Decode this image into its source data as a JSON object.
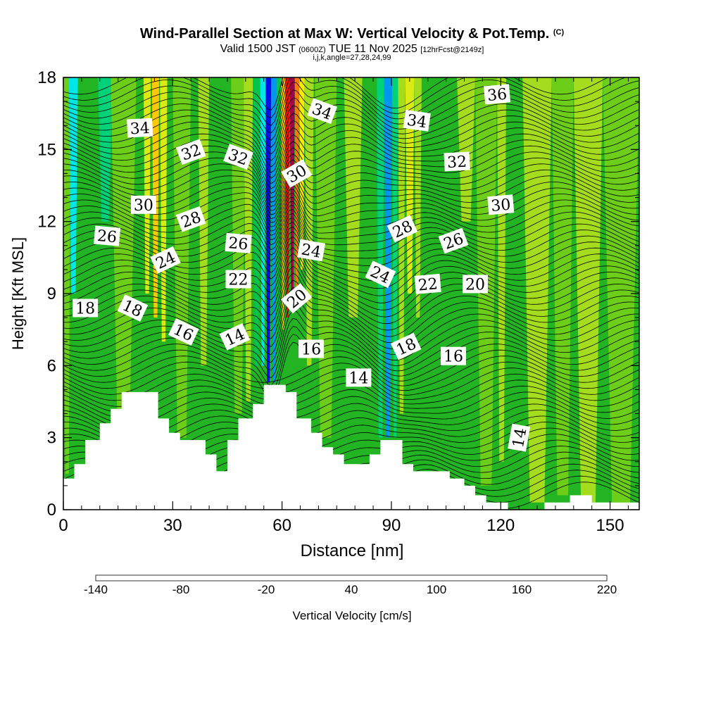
{
  "header": {
    "title": "Wind-Parallel Section at Max W: Vertical Velocity & Pot.Temp.",
    "copyright": "(C)",
    "valid_prefix": "Valid 1500 JST",
    "valid_utc": "(0600Z)",
    "valid_date": "TUE 11 Nov 2025",
    "forecast": "[12hrFcst@2149z]",
    "indices": "i,j,k,angle=27,28,24,99"
  },
  "chart_data": {
    "type": "heatmap",
    "xlabel": "Distance [nm]",
    "ylabel": "Height [Kft MSL]",
    "xlim": [
      0,
      158
    ],
    "ylim": [
      0,
      18
    ],
    "x_ticks": [
      0,
      30,
      60,
      90,
      120,
      150
    ],
    "y_ticks": [
      0,
      3,
      6,
      9,
      12,
      15,
      18
    ],
    "x_tick_labels": [
      "0",
      "30",
      "60",
      "90",
      "120",
      "150"
    ],
    "y_tick_labels": [
      "0",
      "3",
      "6",
      "9",
      "12",
      "15",
      "18"
    ],
    "colorbar": {
      "label": "Vertical Velocity [cm/s]",
      "min": -140,
      "max": 220,
      "step": 20,
      "tick_labels": [
        "-140",
        "-80",
        "-20",
        "40",
        "100",
        "160",
        "220"
      ],
      "colors": [
        "#0010e6",
        "#0050f0",
        "#0098ee",
        "#00e6e6",
        "#00d27a",
        "#00c44e",
        "#22b422",
        "#6cce18",
        "#a6dc1e",
        "#dcea14",
        "#ffea00",
        "#ffc800",
        "#ffa000",
        "#ff7800",
        "#ff4800",
        "#ee1000",
        "#c80018",
        "#a0004a",
        "#7a0068",
        "#5a0080"
      ]
    },
    "terrain": [
      [
        0,
        1.3
      ],
      [
        3,
        1.3
      ],
      [
        3,
        1.9
      ],
      [
        6,
        1.9
      ],
      [
        6,
        2.9
      ],
      [
        10,
        2.9
      ],
      [
        10,
        3.6
      ],
      [
        13,
        3.6
      ],
      [
        13,
        4.2
      ],
      [
        16,
        4.2
      ],
      [
        16,
        4.9
      ],
      [
        26,
        4.9
      ],
      [
        26,
        3.8
      ],
      [
        29,
        3.8
      ],
      [
        29,
        3.2
      ],
      [
        32,
        3.2
      ],
      [
        32,
        2.9
      ],
      [
        39,
        2.9
      ],
      [
        39,
        2.3
      ],
      [
        42,
        2.3
      ],
      [
        42,
        1.6
      ],
      [
        45,
        1.6
      ],
      [
        45,
        2.9
      ],
      [
        48,
        2.9
      ],
      [
        48,
        3.8
      ],
      [
        52,
        3.8
      ],
      [
        52,
        4.4
      ],
      [
        55,
        4.4
      ],
      [
        55,
        5.2
      ],
      [
        61,
        5.2
      ],
      [
        61,
        4.9
      ],
      [
        64,
        4.9
      ],
      [
        64,
        3.8
      ],
      [
        68,
        3.8
      ],
      [
        68,
        3.2
      ],
      [
        71,
        3.2
      ],
      [
        71,
        2.6
      ],
      [
        74,
        2.6
      ],
      [
        74,
        2.3
      ],
      [
        77,
        2.3
      ],
      [
        77,
        1.9
      ],
      [
        84,
        1.9
      ],
      [
        84,
        2.3
      ],
      [
        87,
        2.3
      ],
      [
        87,
        2.9
      ],
      [
        93,
        2.9
      ],
      [
        93,
        1.9
      ],
      [
        96,
        1.9
      ],
      [
        96,
        1.6
      ],
      [
        106,
        1.6
      ],
      [
        106,
        1.3
      ],
      [
        110,
        1.3
      ],
      [
        110,
        1.0
      ],
      [
        113,
        1.0
      ],
      [
        113,
        0.6
      ],
      [
        116,
        0.6
      ],
      [
        116,
        0.3
      ],
      [
        122,
        0.3
      ],
      [
        122,
        0.0
      ],
      [
        132,
        0.0
      ],
      [
        132,
        0.3
      ],
      [
        139,
        0.3
      ],
      [
        139,
        0.6
      ],
      [
        145,
        0.6
      ],
      [
        145,
        0.3
      ],
      [
        158,
        0.3
      ]
    ],
    "velocity_bands": [
      {
        "x": 0,
        "w": 2,
        "value": 0,
        "ymin": 1.5
      },
      {
        "x": 1.5,
        "w": 2.5,
        "value": -70,
        "ymin": 9
      },
      {
        "x": 9.5,
        "w": 4,
        "value": -60,
        "ymin": 12
      },
      {
        "x": 13,
        "w": 7,
        "value": 10,
        "ymin": 4
      },
      {
        "x": 22,
        "w": 2,
        "value": 40,
        "ymin": 9
      },
      {
        "x": 24.3,
        "w": 2,
        "value": 80,
        "ymin": 8
      },
      {
        "x": 26.5,
        "w": 2,
        "value": 40,
        "ymin": 7
      },
      {
        "x": 30,
        "w": 5,
        "value": 10,
        "ymin": 3
      },
      {
        "x": 37,
        "w": 3,
        "value": 30,
        "ymin": 6
      },
      {
        "x": 40,
        "w": 6,
        "value": -10,
        "ymin": 3
      },
      {
        "x": 46,
        "w": 4,
        "value": 0,
        "ymin": 4
      },
      {
        "x": 49.5,
        "w": 2.5,
        "value": 30,
        "ymin": 4.5
      },
      {
        "x": 52,
        "w": 2,
        "value": -40,
        "ymin": 6
      },
      {
        "x": 54,
        "w": 1.5,
        "value": -80,
        "ymin": 6
      },
      {
        "x": 55.5,
        "w": 1.5,
        "value": -130,
        "ymin": 5.3
      },
      {
        "x": 57,
        "w": 1.5,
        "value": -100,
        "ymin": 5.3
      },
      {
        "x": 58.5,
        "w": 1.2,
        "value": -40,
        "ymin": 5.3
      },
      {
        "x": 59.7,
        "w": 1.2,
        "value": 90,
        "ymin": 7.5
      },
      {
        "x": 60.9,
        "w": 1.2,
        "value": 160,
        "ymin": 8
      },
      {
        "x": 62.1,
        "w": 1.4,
        "value": 200,
        "ymin": 9
      },
      {
        "x": 63.5,
        "w": 1.2,
        "value": 120,
        "ymin": 9
      },
      {
        "x": 64.7,
        "w": 1.5,
        "value": 60,
        "ymin": 10
      },
      {
        "x": 66.2,
        "w": 2.5,
        "value": 20,
        "ymin": 6
      },
      {
        "x": 69,
        "w": 6,
        "value": 0,
        "ymin": 3
      },
      {
        "x": 77,
        "w": 5,
        "value": 20,
        "ymin": 8
      },
      {
        "x": 82,
        "w": 4,
        "value": -20,
        "ymin": 2
      },
      {
        "x": 86,
        "w": 2,
        "value": -60,
        "ymin": 3
      },
      {
        "x": 88,
        "w": 2.2,
        "value": -90,
        "ymin": 3
      },
      {
        "x": 90.2,
        "w": 1.6,
        "value": -60,
        "ymin": 3
      },
      {
        "x": 91.8,
        "w": 2,
        "value": 20,
        "ymin": 4
      },
      {
        "x": 93.8,
        "w": 2.5,
        "value": 50,
        "ymin": 9
      },
      {
        "x": 96.3,
        "w": 2,
        "value": 30,
        "ymin": 8
      },
      {
        "x": 100,
        "w": 6,
        "value": -10,
        "ymin": 3
      },
      {
        "x": 108,
        "w": 5,
        "value": 30,
        "ymin": 12
      },
      {
        "x": 113,
        "w": 6,
        "value": 10,
        "ymin": 1
      },
      {
        "x": 119,
        "w": 2.5,
        "value": 20,
        "ymin": 2
      },
      {
        "x": 126,
        "w": 6,
        "value": 30,
        "ymin": 10
      },
      {
        "x": 126,
        "w": 8,
        "value": 20,
        "ymin": 0.3
      },
      {
        "x": 134,
        "w": 6,
        "value": 0,
        "ymin": 0.6
      },
      {
        "x": 140,
        "w": 8,
        "value": 20,
        "ymin": 0.3
      },
      {
        "x": 148,
        "w": 10,
        "value": 10,
        "ymin": 0.3
      }
    ],
    "theta_labels": [
      {
        "text": "36",
        "x": 119,
        "y": 17.3,
        "angle": -5
      },
      {
        "text": "34",
        "x": 21,
        "y": 15.9,
        "angle": -3
      },
      {
        "text": "34",
        "x": 71,
        "y": 16.6,
        "angle": 20
      },
      {
        "text": "34",
        "x": 97,
        "y": 16.2,
        "angle": 8
      },
      {
        "text": "32",
        "x": 35,
        "y": 14.9,
        "angle": -20
      },
      {
        "text": "32",
        "x": 48,
        "y": 14.7,
        "angle": 20
      },
      {
        "text": "32",
        "x": 108,
        "y": 14.5,
        "angle": -3
      },
      {
        "text": "30",
        "x": 64,
        "y": 14.0,
        "angle": -30
      },
      {
        "text": "30",
        "x": 22,
        "y": 12.7,
        "angle": 0
      },
      {
        "text": "30",
        "x": 120,
        "y": 12.7,
        "angle": -5
      },
      {
        "text": "28",
        "x": 35,
        "y": 12.1,
        "angle": -20
      },
      {
        "text": "28",
        "x": 93,
        "y": 11.7,
        "angle": -25
      },
      {
        "text": "26",
        "x": 12,
        "y": 11.4,
        "angle": 5
      },
      {
        "text": "26",
        "x": 48,
        "y": 11.1,
        "angle": 5
      },
      {
        "text": "26",
        "x": 107,
        "y": 11.2,
        "angle": -20
      },
      {
        "text": "24",
        "x": 68,
        "y": 10.8,
        "angle": 10
      },
      {
        "text": "24",
        "x": 28,
        "y": 10.4,
        "angle": -25
      },
      {
        "text": "24",
        "x": 87,
        "y": 9.8,
        "angle": 25
      },
      {
        "text": "22",
        "x": 48,
        "y": 9.6,
        "angle": 0
      },
      {
        "text": "22",
        "x": 100,
        "y": 9.4,
        "angle": -5
      },
      {
        "text": "20",
        "x": 113,
        "y": 9.4,
        "angle": 0
      },
      {
        "text": "20",
        "x": 64,
        "y": 8.8,
        "angle": -40
      },
      {
        "text": "18",
        "x": 6,
        "y": 8.4,
        "angle": 0
      },
      {
        "text": "18",
        "x": 19,
        "y": 8.4,
        "angle": 25
      },
      {
        "text": "16",
        "x": 33,
        "y": 7.4,
        "angle": 25
      },
      {
        "text": "14",
        "x": 47,
        "y": 7.2,
        "angle": -25
      },
      {
        "text": "16",
        "x": 68,
        "y": 6.7,
        "angle": 0
      },
      {
        "text": "18",
        "x": 94,
        "y": 6.8,
        "angle": -25
      },
      {
        "text": "16",
        "x": 107,
        "y": 6.4,
        "angle": 0
      },
      {
        "text": "14",
        "x": 81,
        "y": 5.5,
        "angle": 0
      },
      {
        "text": "14",
        "x": 125,
        "y": 3.0,
        "angle": -80
      }
    ]
  }
}
